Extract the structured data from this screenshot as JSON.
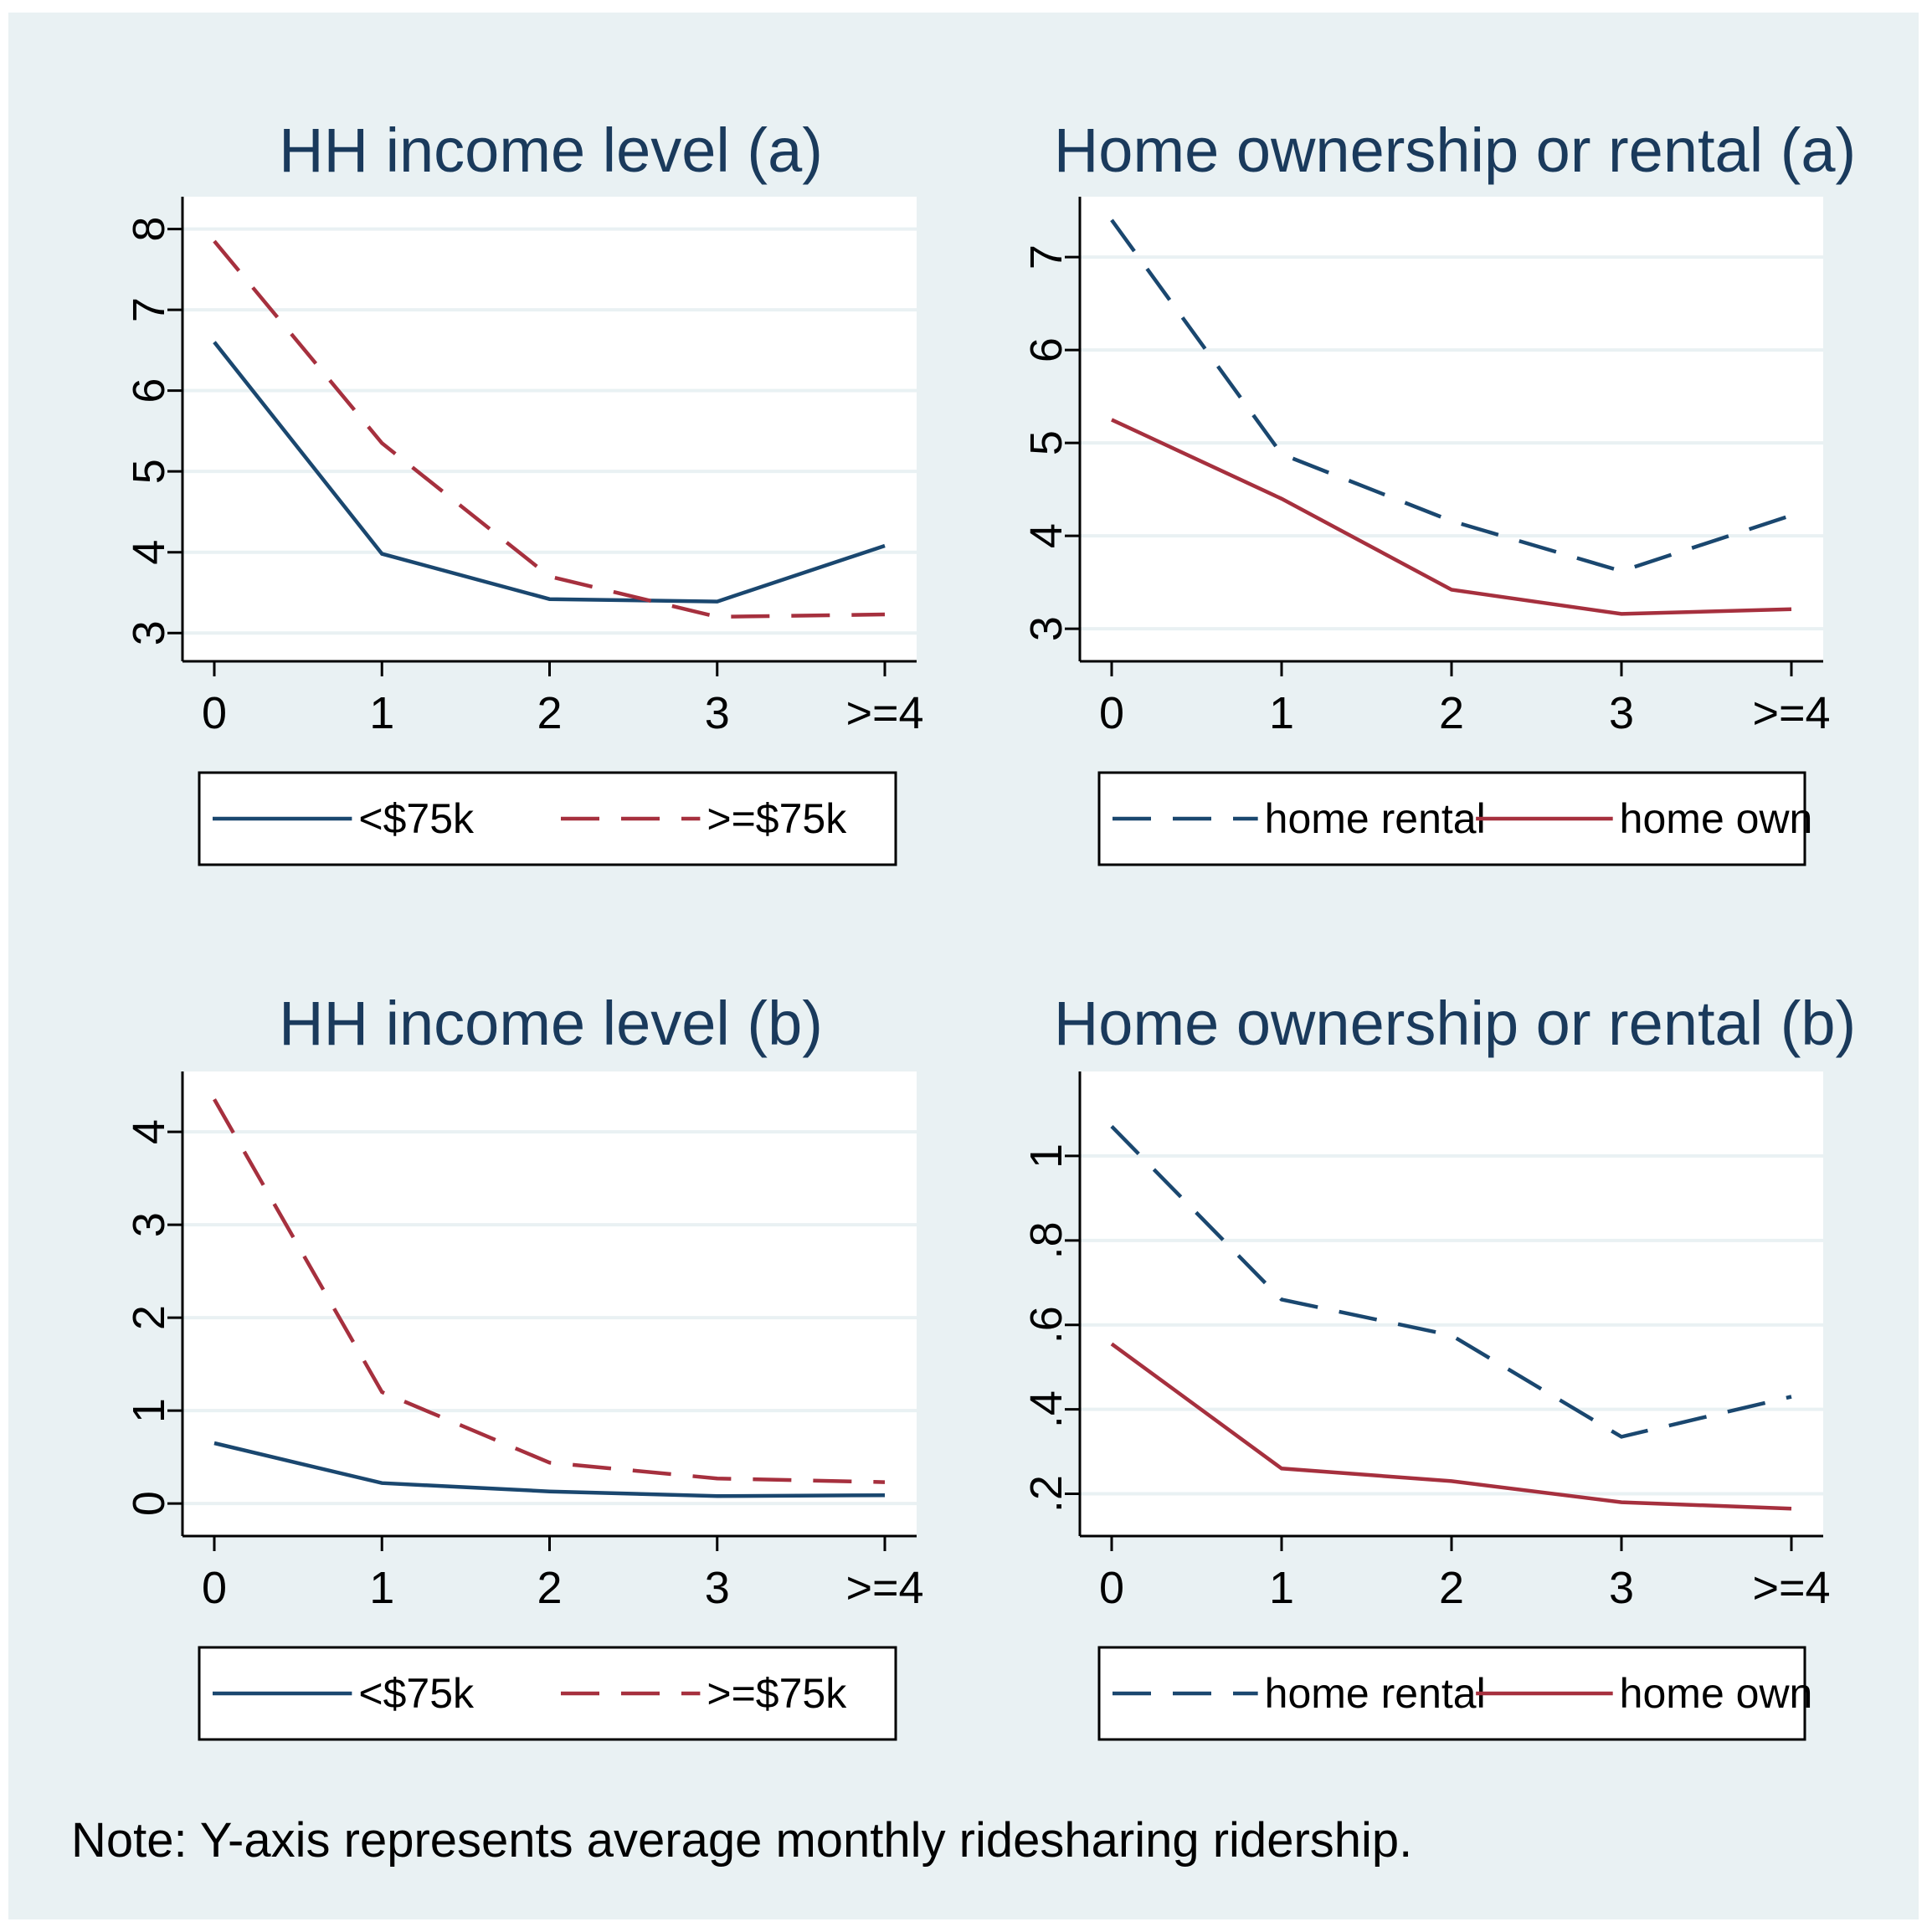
{
  "colors": {
    "background": "#e9f1f3",
    "plot_background": "#ffffff",
    "gridline": "#e9f1f3",
    "navy": "#1a476f",
    "maroon": "#a6303e"
  },
  "note": "Note: Y-axis represents average monthly ridesharing ridership.",
  "chart_data": [
    {
      "type": "line",
      "title": "HH income level (a)",
      "categories": [
        "0",
        "1",
        "2",
        "3",
        ">=4"
      ],
      "ylim": [
        2.65,
        8.4
      ],
      "yticks": [
        "3",
        "4",
        "5",
        "6",
        "7",
        "8"
      ],
      "ytick_values": [
        3,
        4,
        5,
        6,
        7,
        8
      ],
      "grid": true,
      "legend_position": "bottom",
      "series": [
        {
          "name": "<$75k",
          "values": [
            6.6,
            3.98,
            3.42,
            3.39,
            4.08
          ],
          "color": "#1a476f",
          "dashed": false
        },
        {
          "name": ">=$75k",
          "values": [
            7.85,
            5.35,
            3.7,
            3.2,
            3.23
          ],
          "color": "#a6303e",
          "dashed": true
        }
      ]
    },
    {
      "type": "line",
      "title": "Home ownership or rental (a)",
      "categories": [
        "0",
        "1",
        "2",
        "3",
        ">=4"
      ],
      "ylim": [
        2.65,
        7.65
      ],
      "yticks": [
        "3",
        "4",
        "5",
        "6",
        "7"
      ],
      "ytick_values": [
        3,
        4,
        5,
        6,
        7
      ],
      "grid": true,
      "legend_position": "bottom",
      "series": [
        {
          "name": "home rental",
          "values": [
            7.4,
            4.88,
            4.16,
            3.62,
            4.22
          ],
          "color": "#1a476f",
          "dashed": true
        },
        {
          "name": "home own",
          "values": [
            5.25,
            4.4,
            3.42,
            3.16,
            3.21
          ],
          "color": "#a6303e",
          "dashed": false
        }
      ]
    },
    {
      "type": "line",
      "title": "HH income level (b)",
      "categories": [
        "0",
        "1",
        "2",
        "3",
        ">=4"
      ],
      "ylim": [
        -0.35,
        4.65
      ],
      "yticks": [
        "0",
        "1",
        "2",
        "3",
        "4"
      ],
      "ytick_values": [
        0,
        1,
        2,
        3,
        4
      ],
      "grid": true,
      "legend_position": "bottom",
      "series": [
        {
          "name": "<$75k",
          "values": [
            0.65,
            0.22,
            0.13,
            0.08,
            0.09
          ],
          "color": "#1a476f",
          "dashed": false
        },
        {
          "name": ">=$75k",
          "values": [
            4.35,
            1.2,
            0.44,
            0.27,
            0.23
          ],
          "color": "#a6303e",
          "dashed": true
        }
      ]
    },
    {
      "type": "line",
      "title": "Home ownership or rental (b)",
      "categories": [
        "0",
        "1",
        "2",
        "3",
        ">=4"
      ],
      "ylim": [
        0.1,
        1.2
      ],
      "yticks": [
        ".2",
        ".4",
        ".6",
        ".8",
        "1"
      ],
      "ytick_values": [
        0.2,
        0.4,
        0.6,
        0.8,
        1.0
      ],
      "grid": true,
      "legend_position": "bottom",
      "series": [
        {
          "name": "home rental",
          "values": [
            1.07,
            0.66,
            0.575,
            0.335,
            0.43
          ],
          "color": "#1a476f",
          "dashed": true
        },
        {
          "name": "home own",
          "values": [
            0.555,
            0.26,
            0.23,
            0.18,
            0.165
          ],
          "color": "#a6303e",
          "dashed": false
        }
      ]
    }
  ]
}
